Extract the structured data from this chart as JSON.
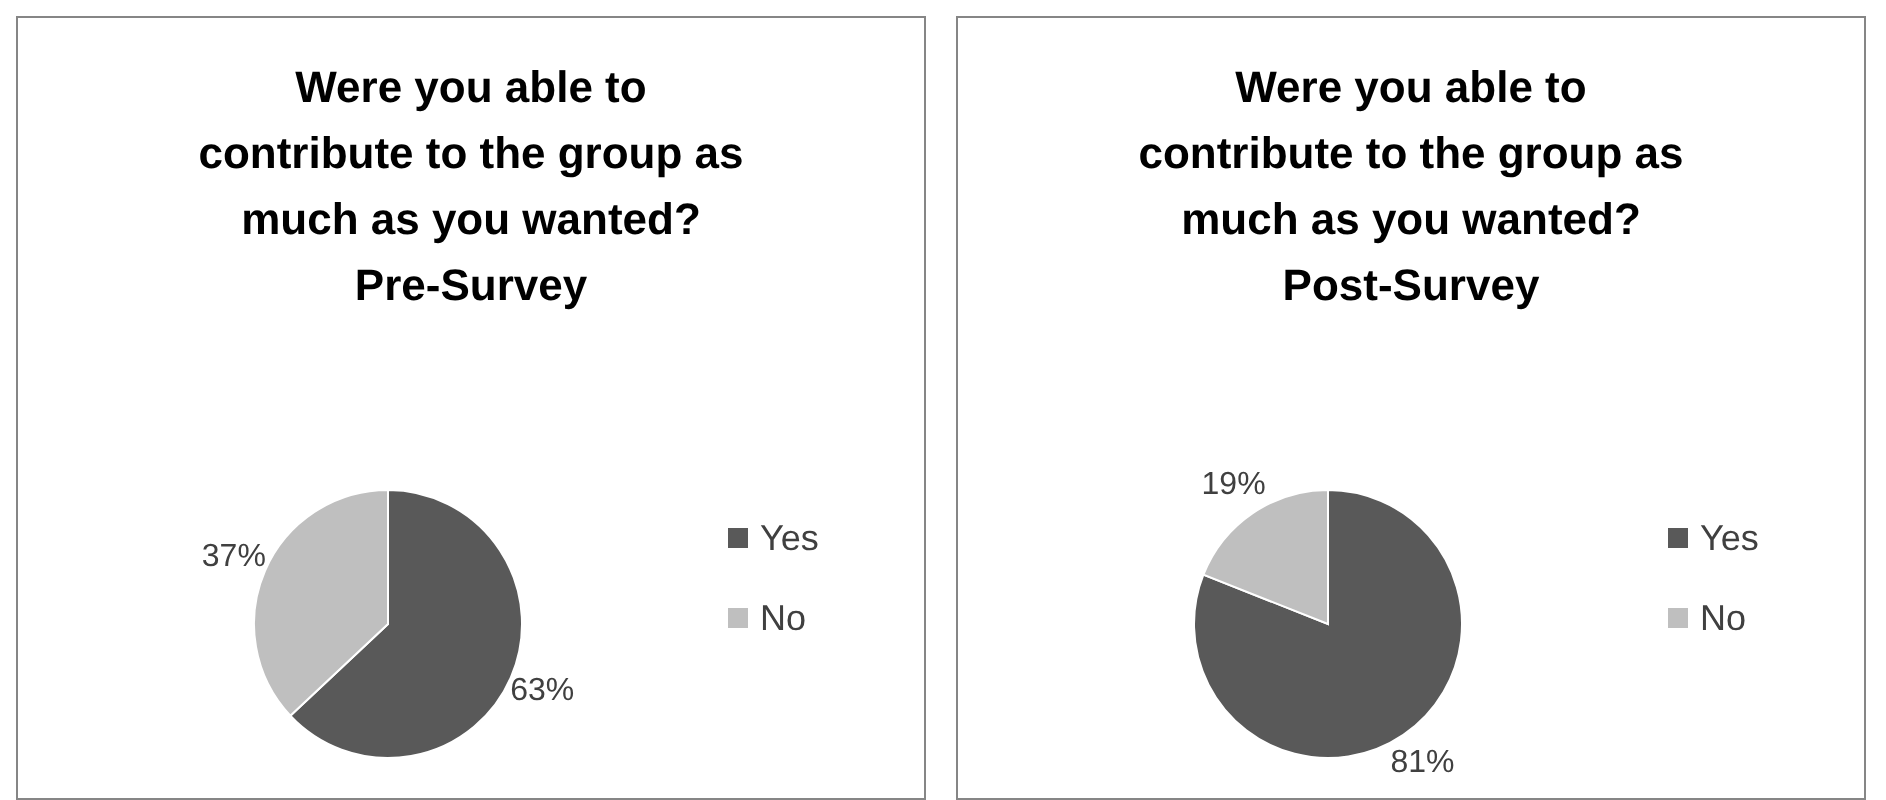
{
  "chart_data": [
    {
      "type": "pie",
      "title": "Were you able to contribute to the group as much as you wanted?",
      "subtitle": "Pre-Survey",
      "categories": [
        "Yes",
        "No"
      ],
      "values": [
        63,
        37
      ],
      "value_labels": [
        "63%",
        "37%"
      ],
      "colors": [
        "#595959",
        "#bfbfbf"
      ],
      "legend": "right"
    },
    {
      "type": "pie",
      "title": "Were you able to contribute to the group as much as you wanted?",
      "subtitle": "Post-Survey",
      "categories": [
        "Yes",
        "No"
      ],
      "values": [
        81,
        19
      ],
      "value_labels": [
        "81%",
        "19%"
      ],
      "colors": [
        "#595959",
        "#bfbfbf"
      ],
      "legend": "right"
    }
  ]
}
